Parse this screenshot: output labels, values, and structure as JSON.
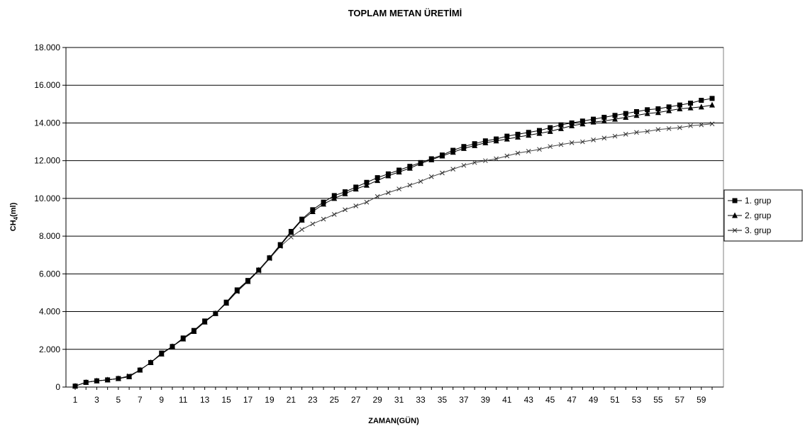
{
  "chart_data": {
    "type": "line",
    "title": "TOPLAM METAN ÜRETİMİ",
    "xlabel": "ZAMAN(GÜN)",
    "ylabel_main": "CH",
    "ylabel_sub": "4",
    "ylabel_unit": "(ml)",
    "xlim": [
      1,
      60
    ],
    "ylim": [
      0,
      18000
    ],
    "y_ticks": [
      "0",
      "2.000",
      "4.000",
      "6.000",
      "8.000",
      "10.000",
      "12.000",
      "14.000",
      "16.000",
      "18.000"
    ],
    "x_tick_labels": [
      "1",
      "3",
      "5",
      "7",
      "9",
      "11",
      "13",
      "15",
      "17",
      "19",
      "21",
      "23",
      "25",
      "27",
      "29",
      "31",
      "33",
      "35",
      "37",
      "39",
      "41",
      "43",
      "45",
      "47",
      "49",
      "51",
      "53",
      "55",
      "57",
      "59"
    ],
    "grid": true,
    "legend_position": "right",
    "x": [
      1,
      2,
      3,
      4,
      5,
      6,
      7,
      8,
      9,
      10,
      11,
      12,
      13,
      14,
      15,
      16,
      17,
      18,
      19,
      20,
      21,
      22,
      23,
      24,
      25,
      26,
      27,
      28,
      29,
      30,
      31,
      32,
      33,
      34,
      35,
      36,
      37,
      38,
      39,
      40,
      41,
      42,
      43,
      44,
      45,
      46,
      47,
      48,
      49,
      50,
      51,
      52,
      53,
      54,
      55,
      56,
      57,
      58,
      59,
      60
    ],
    "series": [
      {
        "name": "1. grup",
        "marker": "square",
        "values": [
          50,
          250,
          330,
          380,
          450,
          550,
          900,
          1300,
          1800,
          2150,
          2600,
          3000,
          3500,
          3900,
          4500,
          5150,
          5650,
          6200,
          6850,
          7550,
          8250,
          8900,
          9400,
          9800,
          10150,
          10350,
          10600,
          10850,
          11100,
          11300,
          11500,
          11700,
          11900,
          12100,
          12300,
          12550,
          12750,
          12900,
          13050,
          13150,
          13300,
          13400,
          13500,
          13600,
          13750,
          13900,
          14000,
          14100,
          14200,
          14300,
          14400,
          14500,
          14600,
          14700,
          14750,
          14850,
          14950,
          15050,
          15200,
          15300
        ]
      },
      {
        "name": "2. grup",
        "marker": "triangle",
        "values": [
          50,
          250,
          330,
          380,
          450,
          550,
          900,
          1300,
          1750,
          2150,
          2550,
          2950,
          3450,
          3900,
          4450,
          5100,
          5600,
          6200,
          6850,
          7500,
          8200,
          8850,
          9300,
          9700,
          10000,
          10250,
          10500,
          10700,
          10950,
          11200,
          11400,
          11600,
          11850,
          12050,
          12250,
          12450,
          12650,
          12800,
          12950,
          13050,
          13150,
          13250,
          13350,
          13450,
          13550,
          13700,
          13850,
          13950,
          14050,
          14100,
          14200,
          14300,
          14400,
          14500,
          14550,
          14650,
          14750,
          14800,
          14850,
          14950
        ]
      },
      {
        "name": "3. grup",
        "marker": "x",
        "values": [
          50,
          250,
          330,
          380,
          450,
          600,
          900,
          1300,
          1750,
          2150,
          2550,
          2950,
          3450,
          3900,
          4450,
          5050,
          5600,
          6150,
          6800,
          7450,
          7950,
          8350,
          8650,
          8900,
          9150,
          9400,
          9600,
          9800,
          10100,
          10300,
          10500,
          10700,
          10900,
          11150,
          11350,
          11550,
          11750,
          11900,
          12000,
          12100,
          12250,
          12400,
          12500,
          12600,
          12750,
          12850,
          12950,
          13000,
          13100,
          13200,
          13300,
          13400,
          13500,
          13550,
          13650,
          13700,
          13750,
          13850,
          13900,
          13950
        ]
      }
    ]
  }
}
